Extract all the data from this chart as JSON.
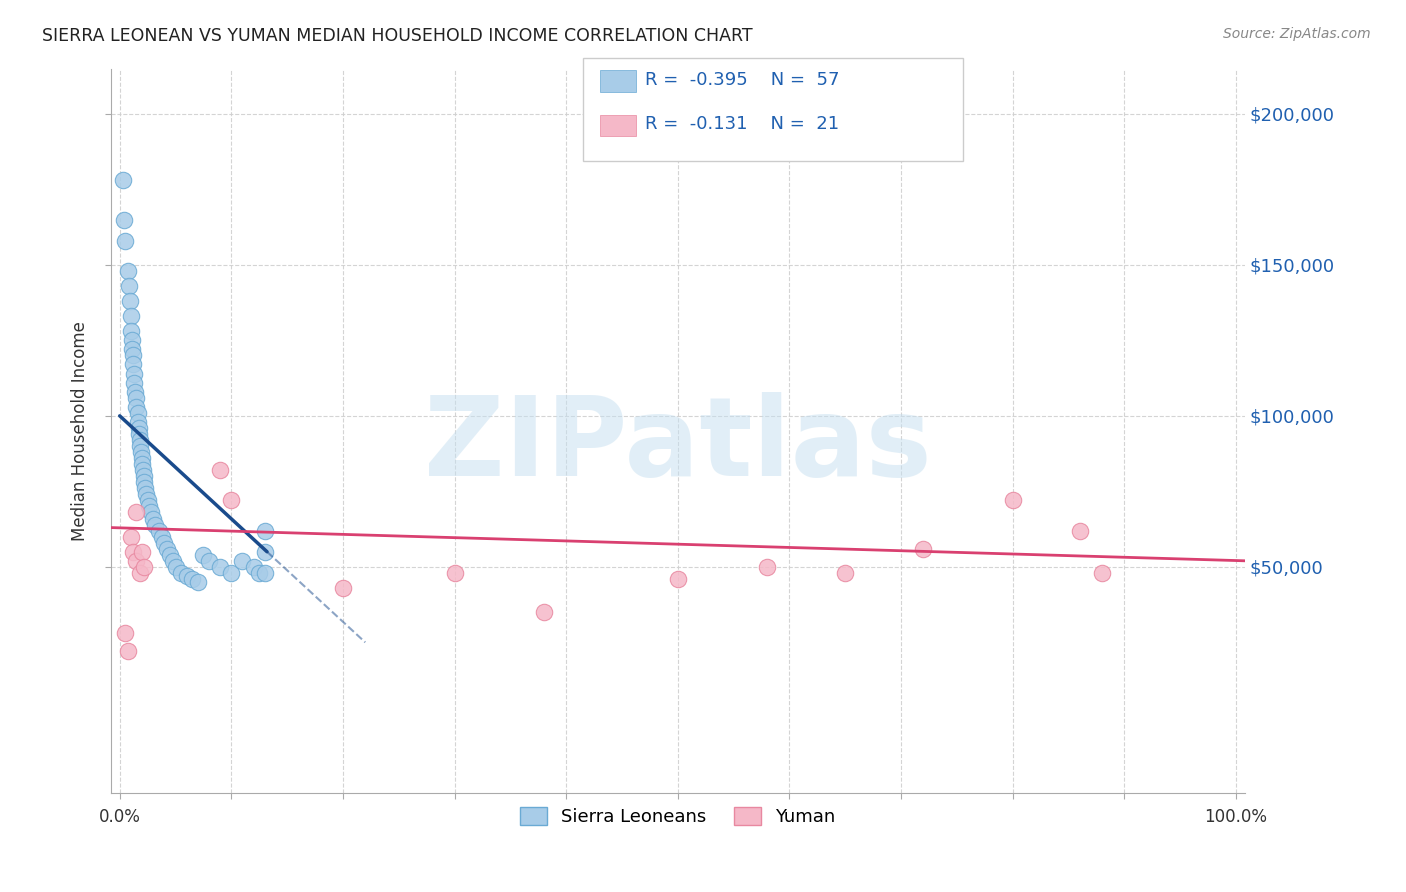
{
  "title": "SIERRA LEONEAN VS YUMAN MEDIAN HOUSEHOLD INCOME CORRELATION CHART",
  "source": "Source: ZipAtlas.com",
  "ylabel": "Median Household Income",
  "watermark": "ZIPatlas",
  "legend_blue_r": "R =",
  "legend_blue_rv": "-0.395",
  "legend_blue_n": "N =",
  "legend_blue_nv": "57",
  "legend_pink_r": "R =",
  "legend_pink_rv": "-0.131",
  "legend_pink_n": "N =",
  "legend_pink_nv": "21",
  "legend_labels": [
    "Sierra Leoneans",
    "Yuman"
  ],
  "ytick_labels": [
    "$50,000",
    "$100,000",
    "$150,000",
    "$200,000"
  ],
  "ytick_values": [
    50000,
    100000,
    150000,
    200000
  ],
  "ymax": 215000,
  "ymin": -25000,
  "xmin": -0.008,
  "xmax": 1.008,
  "blue_color": "#a8cce8",
  "blue_edge_color": "#6aaad4",
  "blue_line_color": "#1a4b8c",
  "pink_color": "#f5b8c8",
  "pink_edge_color": "#e888a0",
  "pink_line_color": "#d94070",
  "grid_color": "#d0d0d0",
  "background_color": "#ffffff",
  "blue_scatter_x": [
    0.003,
    0.004,
    0.005,
    0.007,
    0.008,
    0.009,
    0.01,
    0.01,
    0.011,
    0.011,
    0.012,
    0.012,
    0.013,
    0.013,
    0.014,
    0.015,
    0.015,
    0.016,
    0.016,
    0.017,
    0.017,
    0.018,
    0.018,
    0.019,
    0.02,
    0.02,
    0.021,
    0.022,
    0.022,
    0.023,
    0.024,
    0.025,
    0.026,
    0.028,
    0.03,
    0.032,
    0.035,
    0.038,
    0.04,
    0.042,
    0.045,
    0.048,
    0.05,
    0.055,
    0.06,
    0.065,
    0.07,
    0.075,
    0.08,
    0.09,
    0.1,
    0.11,
    0.12,
    0.125,
    0.13,
    0.13,
    0.13
  ],
  "blue_scatter_y": [
    178000,
    165000,
    158000,
    148000,
    143000,
    138000,
    133000,
    128000,
    125000,
    122000,
    120000,
    117000,
    114000,
    111000,
    108000,
    106000,
    103000,
    101000,
    98000,
    96000,
    94000,
    92000,
    90000,
    88000,
    86000,
    84000,
    82000,
    80000,
    78000,
    76000,
    74000,
    72000,
    70000,
    68000,
    66000,
    64000,
    62000,
    60000,
    58000,
    56000,
    54000,
    52000,
    50000,
    48000,
    47000,
    46000,
    45000,
    54000,
    52000,
    50000,
    48000,
    52000,
    50000,
    48000,
    62000,
    55000,
    48000
  ],
  "pink_scatter_x": [
    0.005,
    0.007,
    0.01,
    0.012,
    0.015,
    0.018,
    0.02,
    0.022,
    0.09,
    0.1,
    0.2,
    0.3,
    0.38,
    0.5,
    0.58,
    0.65,
    0.72,
    0.8,
    0.86,
    0.88,
    0.015
  ],
  "pink_scatter_y": [
    28000,
    22000,
    60000,
    55000,
    52000,
    48000,
    55000,
    50000,
    82000,
    72000,
    43000,
    48000,
    35000,
    46000,
    50000,
    48000,
    56000,
    72000,
    62000,
    48000,
    68000
  ]
}
